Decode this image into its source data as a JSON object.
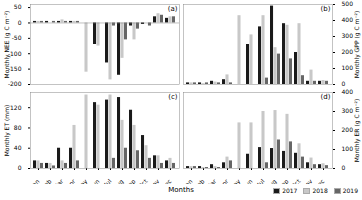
{
  "chart_data": [
    {
      "type": "bar",
      "ylabel": "Monthly NEE (g C m⁻²)",
      "annotation": "(a)",
      "categories": [
        "Jan",
        "Feb",
        "Mar",
        "Apr",
        "May",
        "Jun",
        "Jul",
        "Aug",
        "Sep",
        "Oct",
        "Nov",
        "Dec"
      ],
      "series": [
        {
          "name": "2017",
          "color": "#1a1a1a",
          "values": [
            5,
            5,
            5,
            5,
            0,
            -70,
            -130,
            -170,
            -10,
            -5,
            20,
            15
          ]
        },
        {
          "name": "2018",
          "color": "#c8c8c8",
          "values": [
            5,
            0,
            10,
            5,
            -160,
            -75,
            -185,
            -115,
            -55,
            0,
            30,
            20
          ]
        },
        {
          "name": "2019",
          "color": "#666666",
          "values": [
            5,
            5,
            5,
            5,
            0,
            0,
            -10,
            -55,
            -20,
            -10,
            25,
            20
          ]
        }
      ],
      "ylim": [
        -200,
        60
      ],
      "yticks": [
        -200,
        -150,
        -100,
        -50,
        0,
        50
      ],
      "tick_labels": "y",
      "grid": false,
      "legend": "lower right"
    },
    {
      "type": "bar",
      "ylabel": "Monthly GPP (g C m⁻²)",
      "annotation": "(b)",
      "categories": [
        "Jan",
        "Feb",
        "Mar",
        "Apr",
        "May",
        "Jun",
        "Jul",
        "Aug",
        "Sep",
        "Oct",
        "Nov",
        "Dec"
      ],
      "series": [
        {
          "name": "2017",
          "color": "#1a1a1a",
          "values": [
            10,
            10,
            20,
            30,
            0,
            250,
            360,
            490,
            380,
            200,
            20,
            20
          ]
        },
        {
          "name": "2018",
          "color": "#c8c8c8",
          "values": [
            10,
            5,
            15,
            60,
            430,
            310,
            430,
            230,
            370,
            380,
            90,
            25
          ]
        },
        {
          "name": "2019",
          "color": "#666666",
          "values": [
            10,
            10,
            10,
            10,
            0,
            0,
            40,
            190,
            160,
            55,
            20,
            20
          ]
        }
      ],
      "ylim": [
        0,
        500
      ],
      "yticks": [
        0,
        100,
        200,
        300,
        400,
        500
      ],
      "tick_labels": "y",
      "grid": false
    },
    {
      "type": "bar",
      "ylabel": "Monthly ET (mm)",
      "annotation": "(c)",
      "xlabel": "Months",
      "categories": [
        "Jan",
        "Feb",
        "Mar",
        "Apr",
        "May",
        "Jun",
        "Jul",
        "Aug",
        "Sep",
        "Oct",
        "Nov",
        "Dec"
      ],
      "series": [
        {
          "name": "2017",
          "color": "#1a1a1a",
          "values": [
            15,
            10,
            40,
            40,
            0,
            130,
            135,
            140,
            115,
            65,
            25,
            15
          ]
        },
        {
          "name": "2018",
          "color": "#c8c8c8",
          "values": [
            15,
            10,
            15,
            85,
            145,
            125,
            145,
            95,
            85,
            45,
            25,
            20
          ]
        },
        {
          "name": "2019",
          "color": "#666666",
          "values": [
            10,
            5,
            10,
            15,
            0,
            0,
            20,
            40,
            35,
            20,
            10,
            10
          ]
        }
      ],
      "ylim": [
        0,
        150
      ],
      "yticks": [
        0,
        40,
        80,
        120
      ],
      "grid": false
    },
    {
      "type": "bar",
      "ylabel": "Monthly ER (g C m⁻²)",
      "annotation": "(d)",
      "categories": [
        "Jan",
        "Feb",
        "Mar",
        "Apr",
        "May",
        "Jun",
        "Jul",
        "Aug",
        "Sep",
        "Oct",
        "Nov",
        "Dec"
      ],
      "series": [
        {
          "name": "2017",
          "color": "#1a1a1a",
          "values": [
            10,
            10,
            20,
            30,
            0,
            75,
            110,
            105,
            90,
            80,
            30,
            20
          ]
        },
        {
          "name": "2018",
          "color": "#c8c8c8",
          "values": [
            10,
            5,
            10,
            60,
            240,
            240,
            300,
            305,
            285,
            130,
            55,
            25
          ]
        },
        {
          "name": "2019",
          "color": "#666666",
          "values": [
            10,
            5,
            5,
            40,
            0,
            0,
            30,
            150,
            140,
            60,
            20,
            15
          ]
        }
      ],
      "ylim": [
        0,
        400
      ],
      "yticks": [
        0,
        100,
        200,
        300,
        400
      ],
      "grid": false
    }
  ]
}
